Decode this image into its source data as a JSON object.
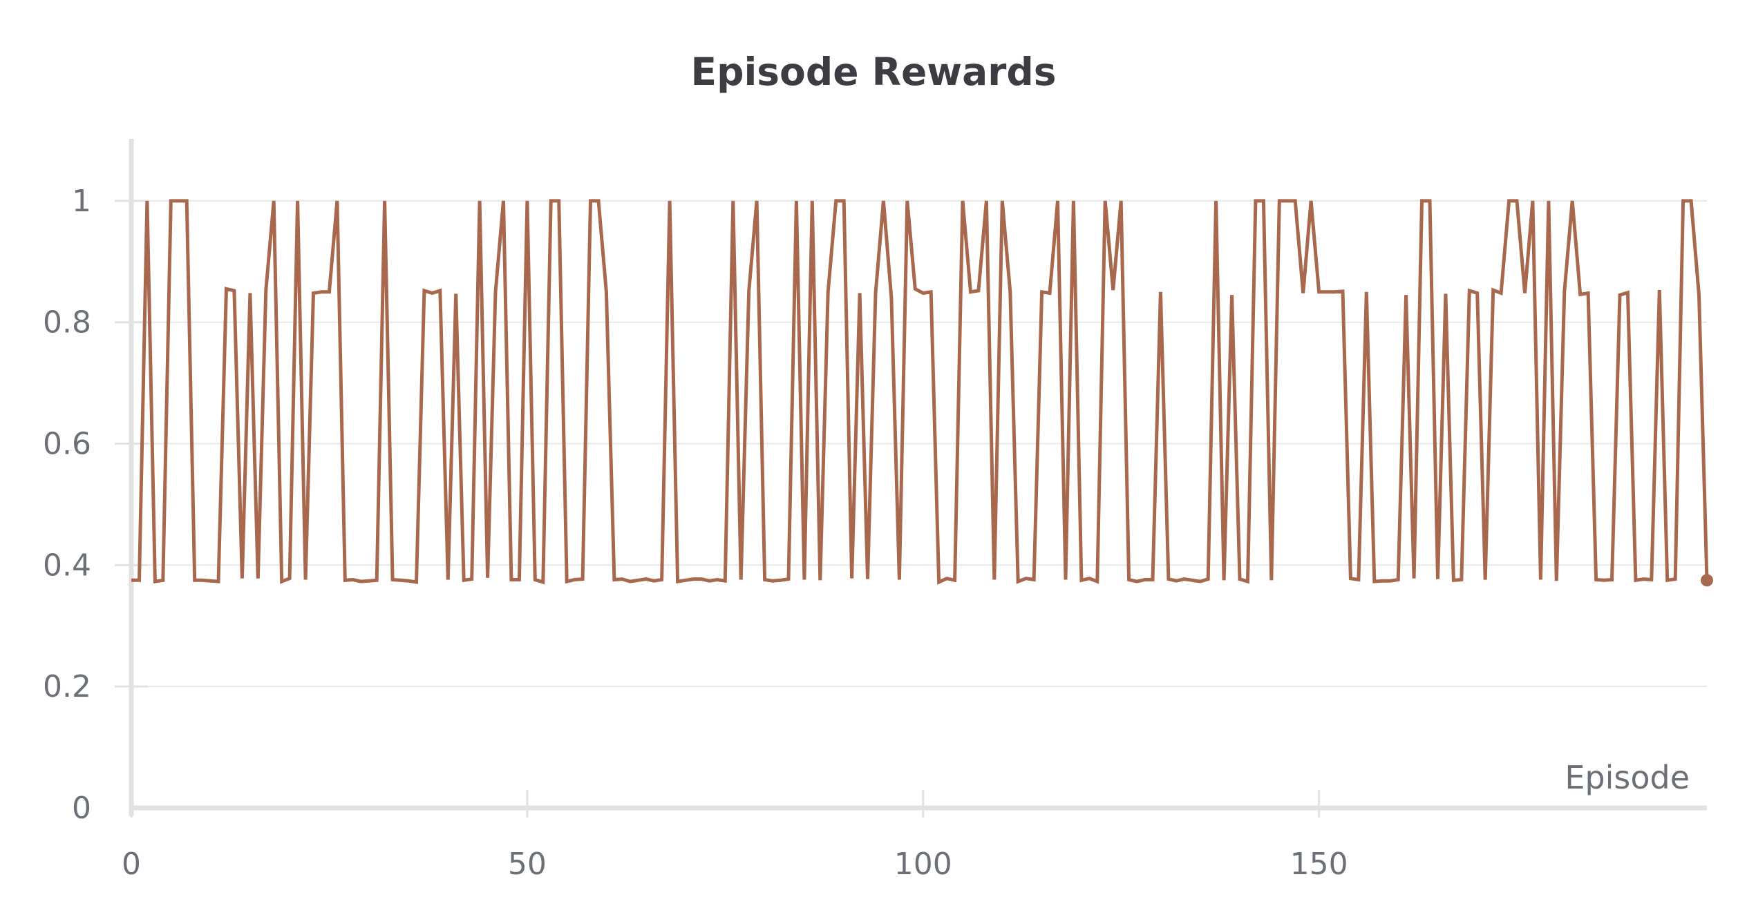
{
  "chart_data": {
    "type": "line",
    "title": "Episode Rewards",
    "xlabel": "Episode",
    "ylabel": "",
    "xlim": [
      0,
      199
    ],
    "ylim": [
      0,
      1.1
    ],
    "x_ticks": [
      0,
      50,
      100,
      150
    ],
    "x_tick_labels": [
      "0",
      "50",
      "100",
      "150"
    ],
    "y_ticks": [
      0,
      0.2,
      0.4,
      0.6,
      0.8,
      1
    ],
    "y_tick_labels": [
      "0",
      "0.2",
      "0.4",
      "0.6",
      "0.8",
      "1"
    ],
    "grid": true,
    "legend": "none",
    "colors": {
      "line": "#a8684d",
      "grid": "#e8e8e8",
      "axis": "#e2e2e2",
      "text": "#6b6f76",
      "title": "#3b3d42"
    },
    "series": [
      {
        "values": [
          0.375,
          0.375,
          1.0,
          0.373,
          0.375,
          1.0,
          1.0,
          1.0,
          0.375,
          0.375,
          0.374,
          0.373,
          0.855,
          0.852,
          0.378,
          0.848,
          0.378,
          0.853,
          1.0,
          0.373,
          0.378,
          1.0,
          0.376,
          0.848,
          0.85,
          0.85,
          1.0,
          0.375,
          0.376,
          0.373,
          0.374,
          0.375,
          1.0,
          0.376,
          0.375,
          0.374,
          0.372,
          0.852,
          0.848,
          0.852,
          0.376,
          0.847,
          0.375,
          0.377,
          1.0,
          0.379,
          0.85,
          1.0,
          0.376,
          0.376,
          1.0,
          0.376,
          0.372,
          1.0,
          1.0,
          0.373,
          0.376,
          0.377,
          1.0,
          1.0,
          0.85,
          0.376,
          0.377,
          0.373,
          0.375,
          0.377,
          0.374,
          0.376,
          1.0,
          0.373,
          0.375,
          0.377,
          0.377,
          0.374,
          0.376,
          0.374,
          1.0,
          0.376,
          0.852,
          1.0,
          0.376,
          0.374,
          0.375,
          0.377,
          1.0,
          0.376,
          1.0,
          0.375,
          0.85,
          1.0,
          1.0,
          0.378,
          0.848,
          0.377,
          0.848,
          1.0,
          0.84,
          0.376,
          1.0,
          0.855,
          0.848,
          0.85,
          0.372,
          0.378,
          0.375,
          1.0,
          0.85,
          0.852,
          1.0,
          0.376,
          1.0,
          0.85,
          0.373,
          0.378,
          0.376,
          0.85,
          0.848,
          1.0,
          0.376,
          1.0,
          0.375,
          0.378,
          0.373,
          1.0,
          0.853,
          1.0,
          0.376,
          0.373,
          0.376,
          0.376,
          0.85,
          0.377,
          0.374,
          0.377,
          0.375,
          0.373,
          0.377,
          1.0,
          0.375,
          0.845,
          0.377,
          0.373,
          1.0,
          1.0,
          0.375,
          1.0,
          1.0,
          1.0,
          0.848,
          1.0,
          0.85,
          0.85,
          0.85,
          0.851,
          0.378,
          0.376,
          0.85,
          0.373,
          0.374,
          0.374,
          0.376,
          0.845,
          0.378,
          1.0,
          1.0,
          0.377,
          0.847,
          0.375,
          0.376,
          0.852,
          0.848,
          0.376,
          0.853,
          0.848,
          1.0,
          1.0,
          0.848,
          1.0,
          0.376,
          1.0,
          0.374,
          0.851,
          1.0,
          0.846,
          0.848,
          0.376,
          0.375,
          0.376,
          0.845,
          0.849,
          0.375,
          0.377,
          0.376,
          0.853,
          0.375,
          0.377,
          1.0,
          1.0,
          0.845,
          0.375
        ]
      }
    ]
  }
}
